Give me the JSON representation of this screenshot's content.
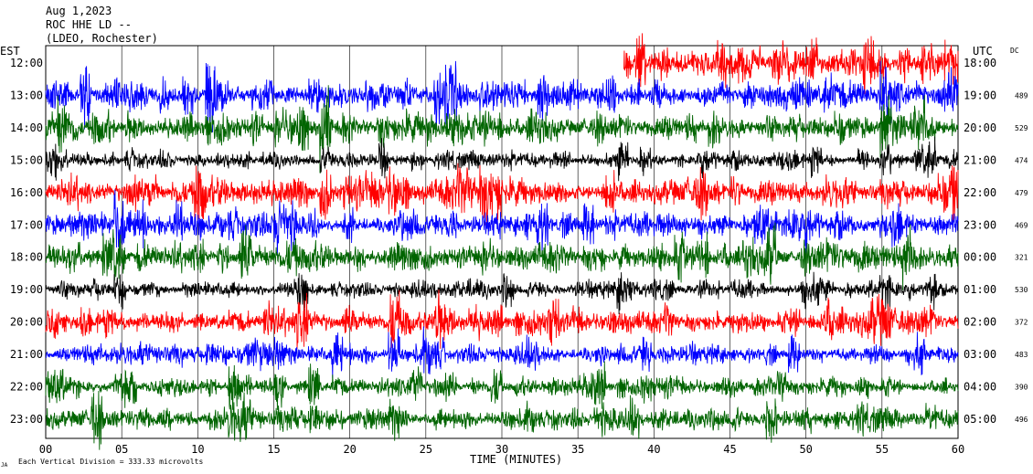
{
  "header": {
    "date": "Aug 1,2023",
    "station": "ROC HHE LD --",
    "network": "(LDEO, Rochester)"
  },
  "axes": {
    "left_label": "EST",
    "right_label": "UTC",
    "dc_label": "DC",
    "x_label": "TIME (MINUTES)",
    "footer_note": "Each Vertical Division = 333.33 microvolts",
    "footer_mark": "JA"
  },
  "chart_data": {
    "type": "line",
    "title": "ROC HHE LD --",
    "xlabel": "TIME (MINUTES)",
    "ylabel": "",
    "xlim": [
      0,
      60
    ],
    "x_ticks": [
      "00",
      "05",
      "10",
      "15",
      "20",
      "25",
      "30",
      "35",
      "40",
      "45",
      "50",
      "55",
      "60"
    ],
    "grid": true,
    "colors": {
      "red": "#ff0000",
      "blue": "#0000ff",
      "green": "#006400",
      "black": "#000000"
    },
    "series": [
      {
        "est": "12:00",
        "utc": "18:00",
        "dc": "",
        "color": "red",
        "amp": 1.2,
        "start_min": 38
      },
      {
        "est": "13:00",
        "utc": "19:00",
        "dc": "489",
        "color": "blue",
        "amp": 1.0,
        "start_min": 0
      },
      {
        "est": "14:00",
        "utc": "20:00",
        "dc": "529",
        "color": "green",
        "amp": 1.1,
        "start_min": 0
      },
      {
        "est": "15:00",
        "utc": "21:00",
        "dc": "474",
        "color": "black",
        "amp": 0.6,
        "start_min": 0
      },
      {
        "est": "16:00",
        "utc": "22:00",
        "dc": "479",
        "color": "red",
        "amp": 1.0,
        "start_min": 0
      },
      {
        "est": "17:00",
        "utc": "23:00",
        "dc": "469",
        "color": "blue",
        "amp": 0.9,
        "start_min": 0
      },
      {
        "est": "18:00",
        "utc": "00:00",
        "dc": "321",
        "color": "green",
        "amp": 1.0,
        "start_min": 0
      },
      {
        "est": "19:00",
        "utc": "01:00",
        "dc": "530",
        "color": "black",
        "amp": 0.6,
        "start_min": 0
      },
      {
        "est": "20:00",
        "utc": "02:00",
        "dc": "372",
        "color": "red",
        "amp": 0.9,
        "start_min": 0
      },
      {
        "est": "21:00",
        "utc": "03:00",
        "dc": "483",
        "color": "blue",
        "amp": 0.7,
        "start_min": 0
      },
      {
        "est": "22:00",
        "utc": "04:00",
        "dc": "390",
        "color": "green",
        "amp": 0.7,
        "start_min": 0
      },
      {
        "est": "23:00",
        "utc": "05:00",
        "dc": "496",
        "color": "green",
        "amp": 0.8,
        "start_min": 0
      }
    ]
  }
}
